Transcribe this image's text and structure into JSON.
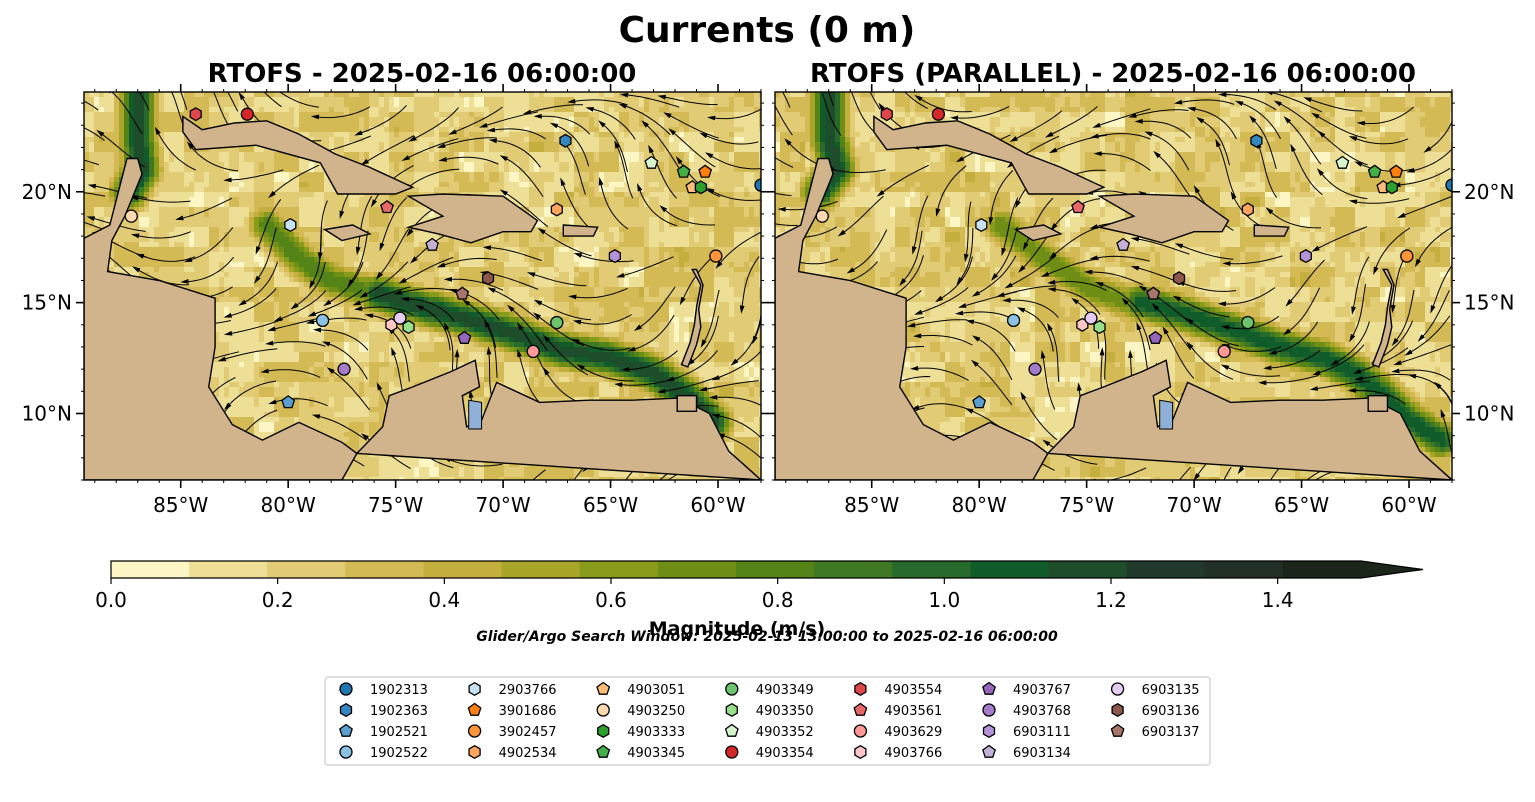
{
  "figure": {
    "title": "Currents (0 m)",
    "search_window_note": "Glider/Argo Search Window: 2025-02-13 13:00:00 to 2025-02-16 06:00:00"
  },
  "chart_data": [
    {
      "type": "heatmap",
      "panel": "left",
      "title": "RTOFS - 2025-02-16 06:00:00",
      "xlim": [
        -89.5,
        -58.0
      ],
      "ylim": [
        7.0,
        24.5
      ],
      "x_ticks": [
        -85,
        -80,
        -75,
        -70,
        -65,
        -60
      ],
      "x_tick_labels": [
        "85°W",
        "80°W",
        "75°W",
        "70°W",
        "65°W",
        "60°W"
      ],
      "y_ticks": [
        10,
        15,
        20
      ],
      "y_tick_labels": [
        "10°N",
        "15°N",
        "20°N"
      ],
      "y_axis_side": "left",
      "grid": false,
      "jets": [
        {
          "path": [
            [
              -87.0,
              24.5
            ],
            [
              -87.0,
              22.5
            ],
            [
              -86.8,
              21.0
            ],
            [
              -87.4,
              20.0
            ]
          ],
          "speed": 1.3
        },
        {
          "path": [
            [
              -75.8,
              15.4
            ],
            [
              -74.6,
              15.0
            ],
            [
              -73.0,
              14.6
            ],
            [
              -71.5,
              14.2
            ],
            [
              -69.5,
              13.6
            ],
            [
              -67.5,
              12.9
            ],
            [
              -65.0,
              12.5
            ],
            [
              -63.0,
              11.8
            ],
            [
              -61.5,
              10.8
            ],
            [
              -60.2,
              9.6
            ]
          ],
          "speed": 1.3
        },
        {
          "path": [
            [
              -89.5,
              10.5
            ],
            [
              -88.5,
              9.5
            ],
            [
              -87.5,
              8.5
            ]
          ],
          "speed": 1.0
        },
        {
          "path": [
            [
              -81.0,
              18.5
            ],
            [
              -79.5,
              17.0
            ],
            [
              -78.0,
              16.0
            ],
            [
              -76.3,
              15.5
            ]
          ],
          "speed": 0.9
        }
      ],
      "floats": [
        {
          "id": "1902313",
          "lon": -58.0,
          "lat": 20.3
        },
        {
          "id": "1902363",
          "lon": -67.1,
          "lat": 22.3
        },
        {
          "id": "1902521",
          "lon": -80.0,
          "lat": 10.5
        },
        {
          "id": "1902522",
          "lon": -78.4,
          "lat": 14.2
        },
        {
          "id": "2903766",
          "lon": -79.9,
          "lat": 18.5
        },
        {
          "id": "3901686",
          "lon": -60.6,
          "lat": 20.9
        },
        {
          "id": "3902457",
          "lon": -60.1,
          "lat": 17.1
        },
        {
          "id": "4902534",
          "lon": -67.5,
          "lat": 19.2
        },
        {
          "id": "4903051",
          "lon": -61.2,
          "lat": 20.2
        },
        {
          "id": "4903250",
          "lon": -87.3,
          "lat": 18.9
        },
        {
          "id": "4903333",
          "lon": -60.8,
          "lat": 20.2
        },
        {
          "id": "4903345",
          "lon": -61.6,
          "lat": 20.9
        },
        {
          "id": "4903349",
          "lon": -67.5,
          "lat": 14.1
        },
        {
          "id": "4903350",
          "lon": -74.4,
          "lat": 13.9
        },
        {
          "id": "4903352",
          "lon": -63.1,
          "lat": 21.3
        },
        {
          "id": "4903354",
          "lon": -81.9,
          "lat": 23.5
        },
        {
          "id": "4903554",
          "lon": -84.3,
          "lat": 23.5
        },
        {
          "id": "4903561",
          "lon": -75.4,
          "lat": 19.3
        },
        {
          "id": "4903629",
          "lon": -68.6,
          "lat": 12.8
        },
        {
          "id": "4903766",
          "lon": -75.2,
          "lat": 14.0
        },
        {
          "id": "4903767",
          "lon": -71.8,
          "lat": 13.4
        },
        {
          "id": "4903768",
          "lon": -77.4,
          "lat": 12.0
        },
        {
          "id": "6903111",
          "lon": -64.8,
          "lat": 17.1
        },
        {
          "id": "6903134",
          "lon": -73.3,
          "lat": 17.6
        },
        {
          "id": "6903135",
          "lon": -74.8,
          "lat": 14.3
        },
        {
          "id": "6903136",
          "lon": -70.7,
          "lat": 16.1
        },
        {
          "id": "6903137",
          "lon": -71.9,
          "lat": 15.4
        }
      ]
    },
    {
      "type": "heatmap",
      "panel": "right",
      "title": "RTOFS (PARALLEL) - 2025-02-16 06:00:00",
      "xlim": [
        -89.5,
        -58.0
      ],
      "ylim": [
        7.0,
        24.5
      ],
      "x_ticks": [
        -85,
        -80,
        -75,
        -70,
        -65,
        -60
      ],
      "x_tick_labels": [
        "85°W",
        "80°W",
        "75°W",
        "70°W",
        "65°W",
        "60°W"
      ],
      "y_ticks": [
        10,
        15,
        20
      ],
      "y_tick_labels": [
        "10°N",
        "15°N",
        "20°N"
      ],
      "y_axis_side": "right",
      "grid": false,
      "jets": [
        {
          "path": [
            [
              -87.0,
              24.5
            ],
            [
              -87.0,
              22.5
            ],
            [
              -86.6,
              21.0
            ],
            [
              -87.4,
              20.0
            ]
          ],
          "speed": 1.3
        },
        {
          "path": [
            [
              -72.5,
              15.0
            ],
            [
              -70.5,
              14.5
            ],
            [
              -68.0,
              13.7
            ],
            [
              -66.0,
              13.0
            ],
            [
              -64.0,
              12.5
            ],
            [
              -62.5,
              11.8
            ],
            [
              -61.3,
              10.9
            ],
            [
              -60.0,
              9.7
            ],
            [
              -58.5,
              8.8
            ]
          ],
          "speed": 1.2
        },
        {
          "path": [
            [
              -89.5,
              10.8
            ],
            [
              -88.8,
              9.8
            ],
            [
              -88.0,
              8.8
            ]
          ],
          "speed": 1.0
        },
        {
          "path": [
            [
              -79.0,
              18.5
            ],
            [
              -77.0,
              17.0
            ],
            [
              -74.8,
              15.6
            ],
            [
              -73.0,
              15.0
            ]
          ],
          "speed": 0.8
        }
      ],
      "floats": [
        {
          "id": "1902313",
          "lon": -58.0,
          "lat": 20.3
        },
        {
          "id": "1902363",
          "lon": -67.1,
          "lat": 22.3
        },
        {
          "id": "1902521",
          "lon": -80.0,
          "lat": 10.5
        },
        {
          "id": "1902522",
          "lon": -78.4,
          "lat": 14.2
        },
        {
          "id": "2903766",
          "lon": -79.9,
          "lat": 18.5
        },
        {
          "id": "3901686",
          "lon": -60.6,
          "lat": 20.9
        },
        {
          "id": "3902457",
          "lon": -60.1,
          "lat": 17.1
        },
        {
          "id": "4902534",
          "lon": -67.5,
          "lat": 19.2
        },
        {
          "id": "4903051",
          "lon": -61.2,
          "lat": 20.2
        },
        {
          "id": "4903250",
          "lon": -87.3,
          "lat": 18.9
        },
        {
          "id": "4903333",
          "lon": -60.8,
          "lat": 20.2
        },
        {
          "id": "4903345",
          "lon": -61.6,
          "lat": 20.9
        },
        {
          "id": "4903349",
          "lon": -67.5,
          "lat": 14.1
        },
        {
          "id": "4903350",
          "lon": -74.4,
          "lat": 13.9
        },
        {
          "id": "4903352",
          "lon": -63.1,
          "lat": 21.3
        },
        {
          "id": "4903354",
          "lon": -81.9,
          "lat": 23.5
        },
        {
          "id": "4903554",
          "lon": -84.3,
          "lat": 23.5
        },
        {
          "id": "4903561",
          "lon": -75.4,
          "lat": 19.3
        },
        {
          "id": "4903629",
          "lon": -68.6,
          "lat": 12.8
        },
        {
          "id": "4903766",
          "lon": -75.2,
          "lat": 14.0
        },
        {
          "id": "4903767",
          "lon": -71.8,
          "lat": 13.4
        },
        {
          "id": "4903768",
          "lon": -77.4,
          "lat": 12.0
        },
        {
          "id": "6903111",
          "lon": -64.8,
          "lat": 17.1
        },
        {
          "id": "6903134",
          "lon": -73.3,
          "lat": 17.6
        },
        {
          "id": "6903135",
          "lon": -74.8,
          "lat": 14.3
        },
        {
          "id": "6903136",
          "lon": -70.7,
          "lat": 16.1
        },
        {
          "id": "6903137",
          "lon": -71.9,
          "lat": 15.4
        }
      ]
    }
  ],
  "land": [
    {
      "name": "cuba",
      "points": [
        [
          -84.9,
          23.4
        ],
        [
          -84.0,
          22.8
        ],
        [
          -82.5,
          23.1
        ],
        [
          -81.0,
          23.2
        ],
        [
          -79.5,
          22.6
        ],
        [
          -77.8,
          21.7
        ],
        [
          -76.2,
          21.1
        ],
        [
          -74.2,
          20.2
        ],
        [
          -75.0,
          19.9
        ],
        [
          -77.7,
          19.9
        ],
        [
          -78.5,
          21.3
        ],
        [
          -81.5,
          22.1
        ],
        [
          -84.3,
          21.9
        ],
        [
          -84.9,
          22.7
        ]
      ]
    },
    {
      "name": "hispaniola",
      "points": [
        [
          -74.4,
          19.8
        ],
        [
          -72.8,
          19.9
        ],
        [
          -70.0,
          19.8
        ],
        [
          -68.4,
          18.7
        ],
        [
          -68.7,
          18.2
        ],
        [
          -70.0,
          18.2
        ],
        [
          -71.5,
          17.7
        ],
        [
          -73.0,
          18.1
        ],
        [
          -74.4,
          18.4
        ],
        [
          -72.8,
          18.9
        ]
      ]
    },
    {
      "name": "jamaica",
      "points": [
        [
          -78.3,
          18.3
        ],
        [
          -77.0,
          18.5
        ],
        [
          -76.2,
          18.1
        ],
        [
          -77.5,
          17.8
        ]
      ]
    },
    {
      "name": "puerto-rico",
      "points": [
        [
          -67.2,
          18.5
        ],
        [
          -65.6,
          18.4
        ],
        [
          -65.8,
          18.0
        ],
        [
          -67.2,
          18.0
        ]
      ]
    },
    {
      "name": "central-america",
      "points": [
        [
          -89.5,
          7.0
        ],
        [
          -89.5,
          17.9
        ],
        [
          -88.3,
          18.5
        ],
        [
          -87.5,
          21.5
        ],
        [
          -87.0,
          21.5
        ],
        [
          -86.8,
          20.8
        ],
        [
          -87.6,
          18.9
        ],
        [
          -88.2,
          17.8
        ],
        [
          -88.4,
          16.4
        ],
        [
          -86.0,
          16.0
        ],
        [
          -83.4,
          15.2
        ],
        [
          -83.4,
          13.0
        ],
        [
          -83.7,
          11.2
        ],
        [
          -82.6,
          9.5
        ],
        [
          -81.2,
          8.8
        ],
        [
          -79.5,
          9.6
        ],
        [
          -77.5,
          8.7
        ],
        [
          -76.8,
          8.2
        ],
        [
          -77.5,
          7.0
        ]
      ]
    },
    {
      "name": "south-america",
      "points": [
        [
          -76.8,
          8.2
        ],
        [
          -75.6,
          9.4
        ],
        [
          -75.3,
          10.8
        ],
        [
          -74.2,
          11.2
        ],
        [
          -72.4,
          11.9
        ],
        [
          -71.3,
          12.4
        ],
        [
          -71.1,
          11.2
        ],
        [
          -71.9,
          10.8
        ],
        [
          -71.7,
          9.4
        ],
        [
          -71.0,
          9.7
        ],
        [
          -70.3,
          11.4
        ],
        [
          -68.3,
          10.5
        ],
        [
          -66.0,
          10.6
        ],
        [
          -64.0,
          10.6
        ],
        [
          -61.8,
          10.7
        ],
        [
          -60.4,
          10.0
        ],
        [
          -59.5,
          8.3
        ],
        [
          -58.0,
          7.0
        ]
      ]
    },
    {
      "name": "trinidad",
      "points": [
        [
          -61.9,
          10.8
        ],
        [
          -61.0,
          10.8
        ],
        [
          -61.0,
          10.1
        ],
        [
          -61.9,
          10.1
        ]
      ]
    },
    {
      "name": "lesser-antilles",
      "points": [
        [
          -61.2,
          16.5
        ],
        [
          -60.8,
          15.8
        ],
        [
          -61.0,
          14.8
        ],
        [
          -61.1,
          14.0
        ],
        [
          -61.3,
          13.2
        ],
        [
          -61.7,
          12.2
        ],
        [
          -61.4,
          12.1
        ],
        [
          -61.0,
          13.1
        ],
        [
          -60.8,
          13.9
        ],
        [
          -60.9,
          14.7
        ],
        [
          -60.7,
          15.8
        ],
        [
          -61.0,
          16.5
        ]
      ]
    }
  ],
  "lake": {
    "name": "lake-maracaibo",
    "points": [
      [
        -71.6,
        10.6
      ],
      [
        -71.0,
        10.5
      ],
      [
        -71.0,
        9.3
      ],
      [
        -71.6,
        9.3
      ]
    ]
  },
  "colorbar": {
    "label": "Magnitude (m/s)",
    "min": 0.0,
    "max": 1.5,
    "step": 0.1,
    "extend": "max",
    "ticks": [
      0.0,
      0.2,
      0.4,
      0.6,
      0.8,
      1.0,
      1.2,
      1.4
    ],
    "tick_labels": [
      "0.0",
      "0.2",
      "0.4",
      "0.6",
      "0.8",
      "1.0",
      "1.2",
      "1.4"
    ],
    "colors": [
      "#fcf5c4",
      "#ede096",
      "#e1cb74",
      "#d3ba55",
      "#c4ae3e",
      "#a8a528",
      "#899b1b",
      "#6f8e15",
      "#548318",
      "#3e7822",
      "#266b2c",
      "#115c2b",
      "#1d4d2b",
      "#21392a",
      "#222f24",
      "#1b251a"
    ]
  },
  "legend": {
    "columns": 7,
    "entries": [
      {
        "id": "1902313",
        "marker": "circle",
        "color": "#1f77b4"
      },
      {
        "id": "1902363",
        "marker": "hexagon",
        "color": "#3486c0"
      },
      {
        "id": "1902521",
        "marker": "pentagon",
        "color": "#5a9fd0"
      },
      {
        "id": "1902522",
        "marker": "circle",
        "color": "#8ac2e6"
      },
      {
        "id": "2903766",
        "marker": "hexagon",
        "color": "#c6e0f4"
      },
      {
        "id": "3901686",
        "marker": "pentagon",
        "color": "#ff7f0e"
      },
      {
        "id": "3902457",
        "marker": "circle",
        "color": "#ff9438"
      },
      {
        "id": "4902534",
        "marker": "hexagon",
        "color": "#ffa45a"
      },
      {
        "id": "4903051",
        "marker": "pentagon",
        "color": "#ffbb78"
      },
      {
        "id": "4903250",
        "marker": "circle",
        "color": "#ffd9b0"
      },
      {
        "id": "4903333",
        "marker": "hexagon",
        "color": "#2ca02c"
      },
      {
        "id": "4903345",
        "marker": "pentagon",
        "color": "#45b045"
      },
      {
        "id": "4903349",
        "marker": "circle",
        "color": "#6cc46c"
      },
      {
        "id": "4903350",
        "marker": "hexagon",
        "color": "#98df8a"
      },
      {
        "id": "4903352",
        "marker": "pentagon",
        "color": "#d6f5cc"
      },
      {
        "id": "4903354",
        "marker": "circle",
        "color": "#d62728"
      },
      {
        "id": "4903554",
        "marker": "hexagon",
        "color": "#e0474a"
      },
      {
        "id": "4903561",
        "marker": "pentagon",
        "color": "#e8686a"
      },
      {
        "id": "4903629",
        "marker": "circle",
        "color": "#ff9896"
      },
      {
        "id": "4903766",
        "marker": "hexagon",
        "color": "#ffc6c6"
      },
      {
        "id": "4903767",
        "marker": "pentagon",
        "color": "#9467bd"
      },
      {
        "id": "4903768",
        "marker": "circle",
        "color": "#a47ccb"
      },
      {
        "id": "6903111",
        "marker": "hexagon",
        "color": "#b493d8"
      },
      {
        "id": "6903134",
        "marker": "pentagon",
        "color": "#c5b0d5"
      },
      {
        "id": "6903135",
        "marker": "circle",
        "color": "#e4ccf5"
      },
      {
        "id": "6903136",
        "marker": "hexagon",
        "color": "#8c564b"
      },
      {
        "id": "6903137",
        "marker": "pentagon",
        "color": "#a8756a"
      }
    ]
  },
  "colors": {
    "land": "#d2b48c",
    "lake": "#8eb0d9",
    "background": "#ffffff"
  }
}
